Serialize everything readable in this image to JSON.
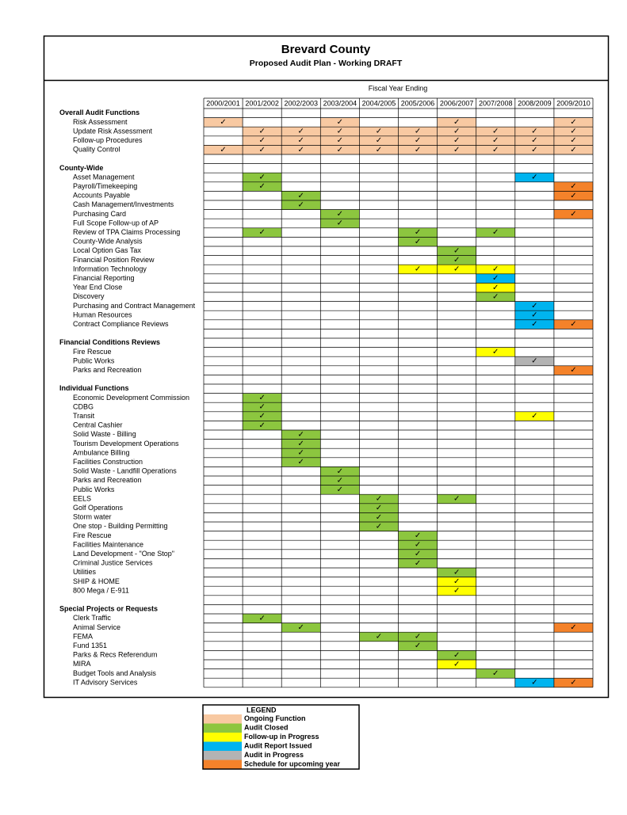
{
  "header": {
    "title": "Brevard County",
    "subtitle": "Proposed Audit Plan - Working DRAFT",
    "group_label": "Fiscal Year Ending"
  },
  "years": [
    "2000/2001",
    "2001/2002",
    "2002/2003",
    "2003/2004",
    "2004/2005",
    "2005/2006",
    "2006/2007",
    "2007/2008",
    "2008/2009",
    "2009/2010"
  ],
  "check": "✓",
  "sections": [
    {
      "title": "Overall Audit Functions",
      "rows": [
        {
          "label": "Risk Assessment",
          "cells": [
            [
              0,
              0
            ],
            [
              3,
              0
            ],
            [
              6,
              0
            ],
            [
              9,
              0
            ]
          ]
        },
        {
          "label": "Update Risk Assessment",
          "cells": [
            [
              1,
              0
            ],
            [
              2,
              0
            ],
            [
              3,
              0
            ],
            [
              4,
              0
            ],
            [
              5,
              0
            ],
            [
              6,
              0
            ],
            [
              7,
              0
            ],
            [
              8,
              0
            ],
            [
              9,
              0
            ]
          ]
        },
        {
          "label": "Follow-up Procedures",
          "cells": [
            [
              1,
              0
            ],
            [
              2,
              0
            ],
            [
              3,
              0
            ],
            [
              4,
              0
            ],
            [
              5,
              0
            ],
            [
              6,
              0
            ],
            [
              7,
              0
            ],
            [
              8,
              0
            ],
            [
              9,
              0
            ]
          ]
        },
        {
          "label": "Quality Control",
          "cells": [
            [
              0,
              0
            ],
            [
              1,
              0
            ],
            [
              2,
              0
            ],
            [
              3,
              0
            ],
            [
              4,
              0
            ],
            [
              5,
              0
            ],
            [
              6,
              0
            ],
            [
              7,
              0
            ],
            [
              8,
              0
            ],
            [
              9,
              0
            ]
          ]
        }
      ]
    },
    {
      "title": "County-Wide",
      "rows": [
        {
          "label": "Asset Management",
          "cells": [
            [
              1,
              1
            ],
            [
              8,
              3
            ]
          ]
        },
        {
          "label": "Payroll/Timekeeping",
          "cells": [
            [
              1,
              1
            ],
            [
              9,
              5
            ]
          ]
        },
        {
          "label": "Accounts Payable",
          "cells": [
            [
              2,
              1
            ],
            [
              9,
              5
            ]
          ]
        },
        {
          "label": "Cash Management/Investments",
          "cells": [
            [
              2,
              1
            ]
          ]
        },
        {
          "label": "Purchasing Card",
          "cells": [
            [
              3,
              1
            ],
            [
              9,
              5
            ]
          ]
        },
        {
          "label": "Full Scope Follow-up of AP",
          "cells": [
            [
              3,
              1
            ]
          ]
        },
        {
          "label": "Review of TPA Claims Processing",
          "cells": [
            [
              1,
              1
            ],
            [
              5,
              1
            ],
            [
              7,
              1
            ]
          ]
        },
        {
          "label": "County-Wide Analysis",
          "cells": [
            [
              5,
              1
            ]
          ]
        },
        {
          "label": "Local Option Gas Tax",
          "cells": [
            [
              6,
              1
            ]
          ]
        },
        {
          "label": "Financial Position Review",
          "cells": [
            [
              6,
              1
            ]
          ]
        },
        {
          "label": "Information Technology",
          "cells": [
            [
              5,
              2
            ],
            [
              6,
              2
            ],
            [
              7,
              2
            ]
          ]
        },
        {
          "label": "Financial Reporting",
          "cells": [
            [
              7,
              3
            ]
          ]
        },
        {
          "label": "Year End Close",
          "cells": [
            [
              7,
              2
            ]
          ]
        },
        {
          "label": "Discovery",
          "cells": [
            [
              7,
              1
            ]
          ]
        },
        {
          "label": "Purchasing and Contract Management",
          "cells": [
            [
              8,
              3
            ]
          ]
        },
        {
          "label": "Human Resources",
          "cells": [
            [
              8,
              3
            ]
          ]
        },
        {
          "label": "Contract Compliance Reviews",
          "cells": [
            [
              8,
              3
            ],
            [
              9,
              5
            ]
          ]
        }
      ]
    },
    {
      "title": "Financial Conditions Reviews",
      "rows": [
        {
          "label": "Fire Rescue",
          "cells": [
            [
              7,
              2
            ]
          ]
        },
        {
          "label": "Public Works",
          "cells": [
            [
              8,
              4
            ]
          ]
        },
        {
          "label": "Parks and Recreation",
          "cells": [
            [
              9,
              5
            ]
          ]
        }
      ]
    },
    {
      "title": "Individual Functions",
      "rows": [
        {
          "label": "Economic Development Commission",
          "cells": [
            [
              1,
              1
            ]
          ]
        },
        {
          "label": "CDBG",
          "cells": [
            [
              1,
              1
            ]
          ]
        },
        {
          "label": "Transit",
          "cells": [
            [
              1,
              1
            ],
            [
              8,
              2
            ]
          ]
        },
        {
          "label": "Central Cashier",
          "cells": [
            [
              1,
              1
            ]
          ]
        },
        {
          "label": "Solid Waste - Billing",
          "cells": [
            [
              2,
              1
            ]
          ]
        },
        {
          "label": "Tourism Development Operations",
          "cells": [
            [
              2,
              1
            ]
          ]
        },
        {
          "label": "Ambulance Billing",
          "cells": [
            [
              2,
              1
            ]
          ]
        },
        {
          "label": "Facilities Construction",
          "cells": [
            [
              2,
              1
            ]
          ]
        },
        {
          "label": "Solid Waste - Landfill Operations",
          "cells": [
            [
              3,
              1
            ]
          ]
        },
        {
          "label": "Parks and Recreation",
          "cells": [
            [
              3,
              1
            ]
          ]
        },
        {
          "label": "Public Works",
          "cells": [
            [
              3,
              1
            ]
          ]
        },
        {
          "label": "EELS",
          "cells": [
            [
              4,
              1
            ],
            [
              6,
              1
            ]
          ]
        },
        {
          "label": "Golf Operations",
          "cells": [
            [
              4,
              1
            ]
          ]
        },
        {
          "label": "Storm water",
          "cells": [
            [
              4,
              1
            ]
          ]
        },
        {
          "label": "One stop - Building Permitting",
          "cells": [
            [
              4,
              1
            ]
          ]
        },
        {
          "label": "Fire Rescue",
          "cells": [
            [
              5,
              1
            ]
          ]
        },
        {
          "label": "Facilities Maintenance",
          "cells": [
            [
              5,
              1
            ]
          ]
        },
        {
          "label": "Land Development - \"One Stop\"",
          "cells": [
            [
              5,
              1
            ]
          ]
        },
        {
          "label": "Criminal Justice Services",
          "cells": [
            [
              5,
              1
            ]
          ]
        },
        {
          "label": "Utilities",
          "cells": [
            [
              6,
              1
            ]
          ]
        },
        {
          "label": "SHIP & HOME",
          "cells": [
            [
              6,
              2
            ]
          ]
        },
        {
          "label": "800 Mega / E-911",
          "cells": [
            [
              6,
              2
            ]
          ]
        }
      ]
    },
    {
      "title": "Special Projects or Requests",
      "rows": [
        {
          "label": "Clerk Traffic",
          "cells": [
            [
              1,
              1
            ]
          ]
        },
        {
          "label": "Animal Service",
          "cells": [
            [
              2,
              1
            ],
            [
              9,
              5
            ]
          ]
        },
        {
          "label": "FEMA",
          "cells": [
            [
              4,
              1
            ],
            [
              5,
              1
            ]
          ]
        },
        {
          "label": "Fund 1351",
          "cells": [
            [
              5,
              1
            ]
          ]
        },
        {
          "label": "Parks & Recs Referendum",
          "cells": [
            [
              6,
              1
            ]
          ]
        },
        {
          "label": "MIRA",
          "cells": [
            [
              6,
              2
            ]
          ]
        },
        {
          "label": "Budget Tools and Analysis",
          "cells": [
            [
              7,
              1
            ]
          ]
        },
        {
          "label": "IT Advisory Services",
          "cells": [
            [
              8,
              3
            ],
            [
              9,
              5
            ]
          ]
        }
      ]
    }
  ],
  "legend": {
    "title": "LEGEND",
    "items": [
      {
        "label": "Ongoing Function",
        "color": "#f8c9a2"
      },
      {
        "label": "Audit Closed",
        "color": "#8cc63f"
      },
      {
        "label": "Follow-up in Progress",
        "color": "#ffff00"
      },
      {
        "label": "Audit Report Issued",
        "color": "#00b4ef"
      },
      {
        "label": "Audit in Progress",
        "color": "#b3b3b3"
      },
      {
        "label": "Schedule for upcoming year",
        "color": "#f4822a"
      }
    ]
  }
}
